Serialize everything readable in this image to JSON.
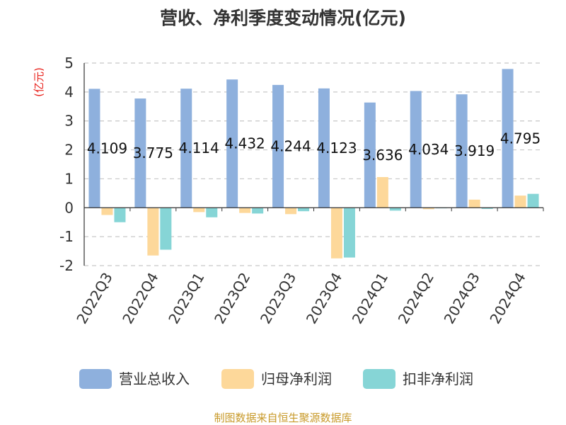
{
  "chart_data": {
    "type": "bar",
    "title": "营收、净利季度变动情况(亿元)",
    "ylabel": "(亿元)",
    "ylim": [
      -2,
      5
    ],
    "yticks": [
      -2,
      -1,
      0,
      1,
      2,
      3,
      4,
      5
    ],
    "grid": true,
    "legend_position": "bottom",
    "categories": [
      "2022Q3",
      "2022Q4",
      "2023Q1",
      "2023Q2",
      "2023Q3",
      "2023Q4",
      "2024Q1",
      "2024Q2",
      "2024Q3",
      "2024Q4"
    ],
    "series": [
      {
        "name": "营业总收入",
        "color": "#8eb0dd",
        "values": [
          4.109,
          3.775,
          4.114,
          4.432,
          4.244,
          4.123,
          3.636,
          4.034,
          3.919,
          4.795
        ],
        "labels": [
          "4.109",
          "3.775",
          "4.114",
          "4.432",
          "4.244",
          "4.123",
          "3.636",
          "4.034",
          "3.919",
          "4.795"
        ]
      },
      {
        "name": "归母净利润",
        "color": "#fdd89a",
        "values": [
          -0.25,
          -1.65,
          -0.15,
          -0.18,
          -0.22,
          -1.75,
          1.06,
          -0.05,
          0.28,
          0.42
        ]
      },
      {
        "name": "扣非净利润",
        "color": "#86d5d6",
        "values": [
          -0.5,
          -1.45,
          -0.33,
          -0.2,
          -0.12,
          -1.72,
          -0.1,
          -0.02,
          -0.04,
          0.48
        ]
      }
    ],
    "source": "制图数据来自恒生聚源数据库"
  }
}
